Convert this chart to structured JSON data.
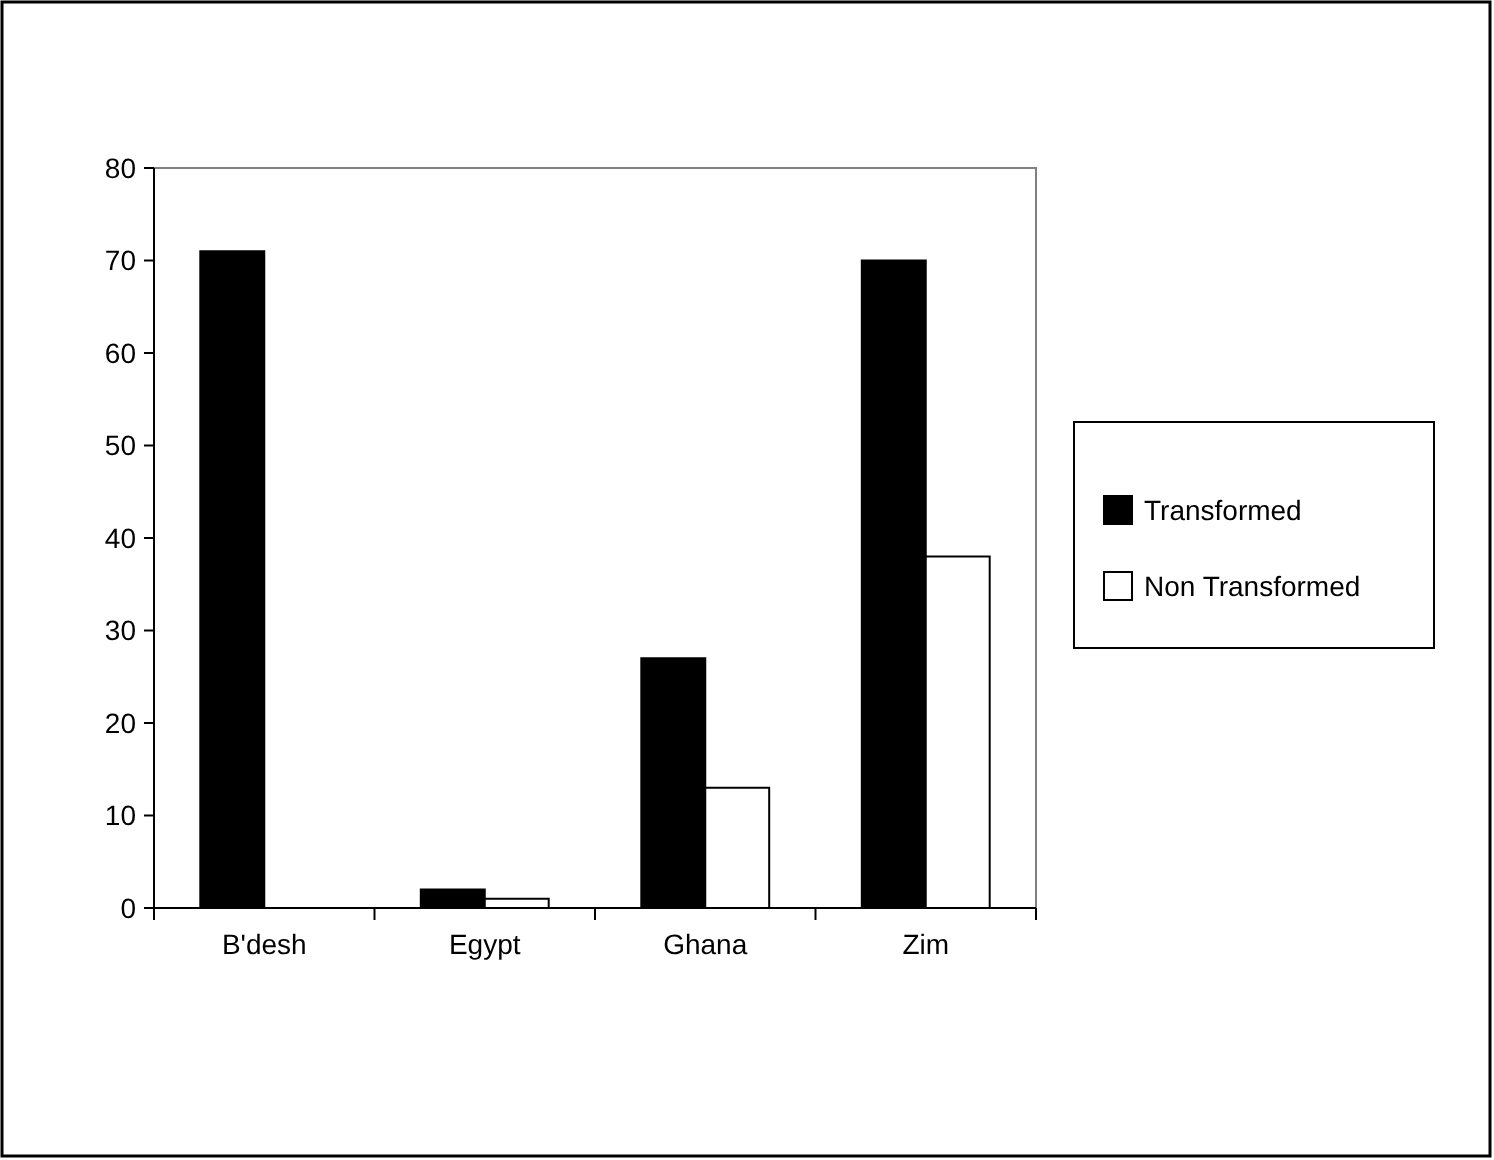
{
  "chart_data": {
    "type": "bar",
    "categories": [
      "B'desh",
      "Egypt",
      "Ghana",
      "Zim"
    ],
    "series": [
      {
        "name": "Transformed",
        "color": "#000000",
        "values": [
          71,
          2,
          27,
          70
        ]
      },
      {
        "name": "Non Transformed",
        "color": "#ffffff",
        "values": [
          0,
          1,
          13,
          38
        ]
      }
    ],
    "ylim": [
      0,
      80
    ],
    "yticks": [
      0,
      10,
      20,
      30,
      40,
      50,
      60,
      70,
      80
    ],
    "grid": false,
    "legend": "right"
  }
}
